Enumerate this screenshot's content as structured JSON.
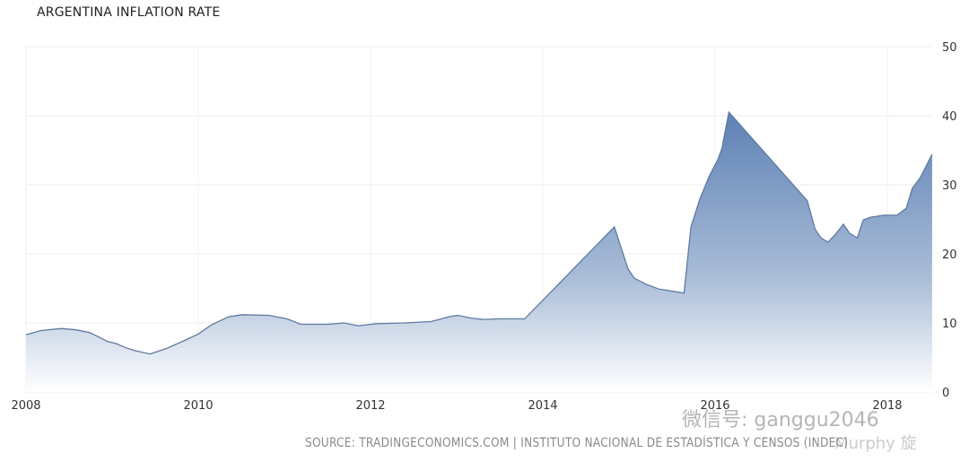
{
  "chart_data": {
    "type": "area",
    "title": "ARGENTINA INFLATION RATE",
    "xlabel": "",
    "ylabel": "",
    "xlim": [
      2008,
      2018.55
    ],
    "ylim": [
      0,
      50
    ],
    "x_ticks": [
      "2008",
      "2010",
      "2012",
      "2014",
      "2016",
      "2018"
    ],
    "y_ticks": [
      "0",
      "10",
      "20",
      "30",
      "40",
      "50"
    ],
    "y_axis_side": "right",
    "grid": true,
    "legend": "none",
    "colors": {
      "line": "#5f7aa0",
      "fill_top": "#5b80b4",
      "fill_bottom": "#ffffff"
    },
    "x": [
      2008.0,
      2008.17,
      2008.41,
      2008.58,
      2008.74,
      2008.84,
      2008.95,
      2009.05,
      2009.16,
      2009.26,
      2009.44,
      2009.63,
      2009.83,
      2010.0,
      2010.15,
      2010.35,
      2010.51,
      2010.82,
      2011.03,
      2011.19,
      2011.5,
      2011.69,
      2011.86,
      2012.07,
      2012.39,
      2012.7,
      2012.91,
      2013.01,
      2013.17,
      2013.32,
      2013.48,
      2013.79,
      2014.83,
      2014.99,
      2015.06,
      2015.2,
      2015.35,
      2015.56,
      2015.64,
      2015.72,
      2015.82,
      2015.93,
      2016.03,
      2016.08,
      2016.11,
      2016.16,
      2017.07,
      2017.16,
      2017.23,
      2017.31,
      2017.39,
      2017.49,
      2017.56,
      2017.65,
      2017.72,
      2017.8,
      2017.96,
      2018.11,
      2018.22,
      2018.29,
      2018.38,
      2018.52
    ],
    "values": [
      8.3,
      8.9,
      9.2,
      9.0,
      8.6,
      8.0,
      7.3,
      7.0,
      6.4,
      6.0,
      5.5,
      6.3,
      7.4,
      8.4,
      9.7,
      10.9,
      11.2,
      11.1,
      10.6,
      9.8,
      9.8,
      10.0,
      9.6,
      9.9,
      10.0,
      10.2,
      10.9,
      11.1,
      10.7,
      10.5,
      10.6,
      10.6,
      23.9,
      17.8,
      16.5,
      15.6,
      14.9,
      14.5,
      14.3,
      23.9,
      27.8,
      31.2,
      33.6,
      35.3,
      37.3,
      40.5,
      27.7,
      23.6,
      22.3,
      21.7,
      22.7,
      24.3,
      23.0,
      22.3,
      24.9,
      25.3,
      25.6,
      25.6,
      26.6,
      29.5,
      31.0,
      34.4
    ]
  },
  "source": "SOURCE: TRADINGECONOMICS.COM | INSTITUTO NACIONAL DE ESTADÍSTICA Y CENSOS (INDEC)",
  "watermark": {
    "account": "微信号: ganggu2046",
    "author": "Murphy 旋"
  }
}
